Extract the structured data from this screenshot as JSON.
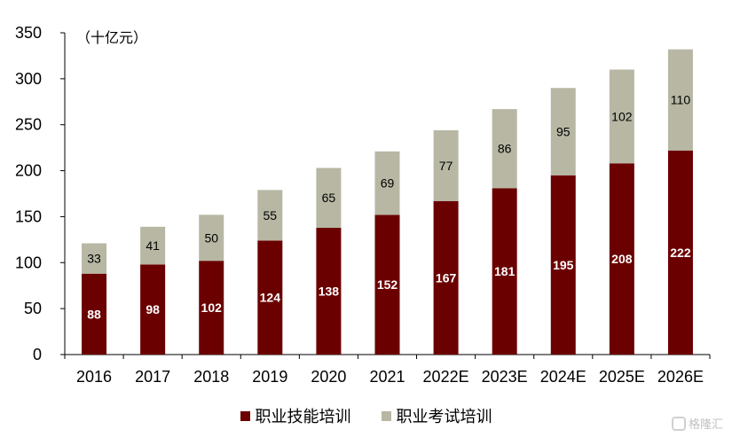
{
  "chart_data": {
    "type": "bar",
    "stacked": true,
    "unit_label": "（十亿元）",
    "categories": [
      "2016",
      "2017",
      "2018",
      "2019",
      "2020",
      "2021",
      "2022E",
      "2023E",
      "2024E",
      "2025E",
      "2026E"
    ],
    "series": [
      {
        "name": "职业技能培训",
        "color": "#6b0000",
        "values": [
          88,
          98,
          102,
          124,
          138,
          152,
          167,
          181,
          195,
          208,
          222
        ]
      },
      {
        "name": "职业考试培训",
        "color": "#b7b7a4",
        "values": [
          33,
          41,
          50,
          55,
          65,
          69,
          77,
          86,
          95,
          102,
          110
        ]
      }
    ],
    "ylim": [
      0,
      350
    ],
    "yticks": [
      0,
      50,
      100,
      150,
      200,
      250,
      300,
      350
    ],
    "grid": false,
    "legend_position": "bottom"
  },
  "watermark": {
    "text": "格隆汇"
  }
}
